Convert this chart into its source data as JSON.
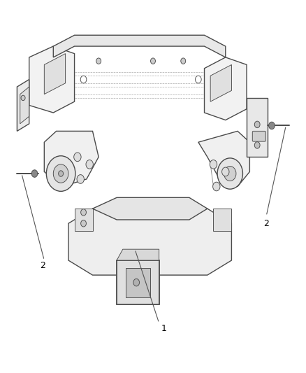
{
  "background_color": "#ffffff",
  "line_color": "#4a4a4a",
  "label_fontsize": 9,
  "annotation_line_color": "#555555",
  "lw_main": 1.0,
  "lw_thin": 0.65
}
